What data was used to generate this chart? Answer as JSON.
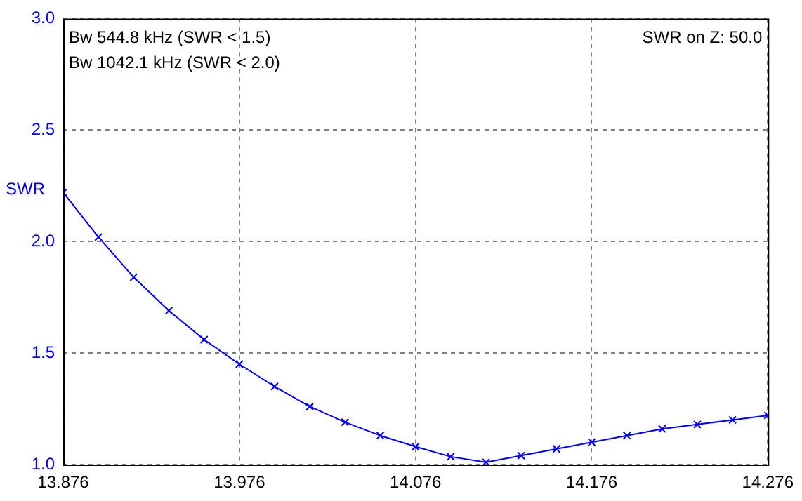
{
  "chart_data": {
    "type": "line",
    "ylabel": "SWR",
    "x": [
      13.876,
      13.896,
      13.916,
      13.936,
      13.956,
      13.976,
      13.996,
      14.016,
      14.036,
      14.056,
      14.076,
      14.096,
      14.116,
      14.136,
      14.156,
      14.176,
      14.196,
      14.216,
      14.236,
      14.256,
      14.276
    ],
    "series": [
      {
        "color": "#0000ff",
        "values": [
          2.22,
          2.02,
          1.84,
          1.69,
          1.56,
          1.45,
          1.35,
          1.26,
          1.19,
          1.13,
          1.08,
          1.035,
          1.01,
          1.04,
          1.07,
          1.1,
          1.13,
          1.16,
          1.18,
          1.2,
          1.22
        ]
      }
    ],
    "xlim": [
      13.876,
      14.276
    ],
    "xticks": [
      13.876,
      13.976,
      14.076,
      14.176,
      14.276
    ],
    "ylim": [
      1,
      3
    ],
    "yticks": [
      {
        "value": 1,
        "label": "1.0"
      },
      1.5,
      {
        "value": 2,
        "label": "2.0"
      },
      2.5,
      {
        "value": 3,
        "label": "3.0"
      }
    ],
    "grid": true,
    "marker": "cross",
    "legend": false,
    "annotations": [
      "Bw 544.8 kHz (SWR < 1.5)",
      "Bw 1042.1 kHz (SWR < 2.0)",
      "SWR on Z: 50.0"
    ]
  }
}
